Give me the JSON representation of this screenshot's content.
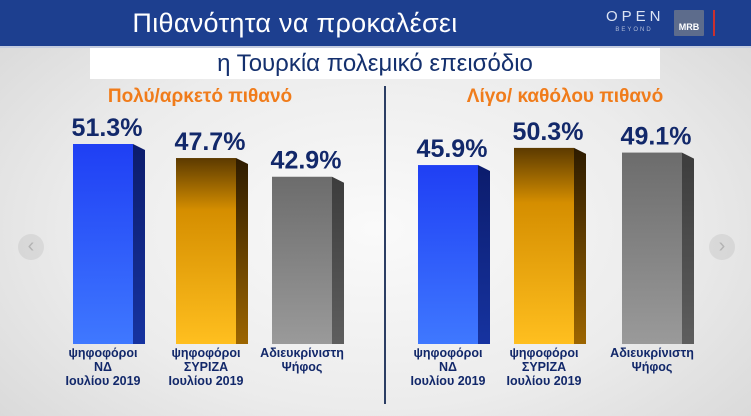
{
  "header": {
    "title_line1": "Πιθανότητα να προκαλέσει",
    "title_line2": "η Τουρκία πολεμικό επεισόδιο",
    "brand_open": "OPEN",
    "brand_sub": "BEYOND",
    "brand_mrb": "MRB"
  },
  "colors": {
    "header_bg": "#1d3f8f",
    "heading_orange": "#f07c1b",
    "value_text": "#12286a",
    "nd_blue": "#1f3ff0",
    "syriza_orange": "#f5a300",
    "undecided_gray": "#7b7b7b"
  },
  "chart_data": [
    {
      "type": "bar",
      "title": "Πολύ/αρκετό πιθανό",
      "categories": [
        [
          "ψηφοφόροι",
          "ΝΔ",
          "Ιουλίου 2019"
        ],
        [
          "ψηφοφόροι",
          "ΣΥΡΙΖΑ",
          "Ιουλίου 2019"
        ],
        [
          "Αδιευκρίνιστη",
          "Ψήφος"
        ]
      ],
      "values": [
        51.3,
        47.7,
        42.9
      ],
      "value_labels": [
        "51.3%",
        "47.7%",
        "42.9%"
      ],
      "bar_colors": [
        "blue",
        "orange",
        "gray"
      ],
      "unit": "%"
    },
    {
      "type": "bar",
      "title": "Λίγο/ καθόλου πιθανό",
      "categories": [
        [
          "ψηφοφόροι",
          "ΝΔ",
          "Ιουλίου 2019"
        ],
        [
          "ψηφοφόροι",
          "ΣΥΡΙΖΑ",
          "Ιουλίου 2019"
        ],
        [
          "Αδιευκρίνιστη",
          "Ψήφος"
        ]
      ],
      "values": [
        45.9,
        50.3,
        49.1
      ],
      "value_labels": [
        "45.9%",
        "50.3%",
        "49.1%"
      ],
      "bar_colors": [
        "blue",
        "orange",
        "gray"
      ],
      "unit": "%"
    }
  ]
}
